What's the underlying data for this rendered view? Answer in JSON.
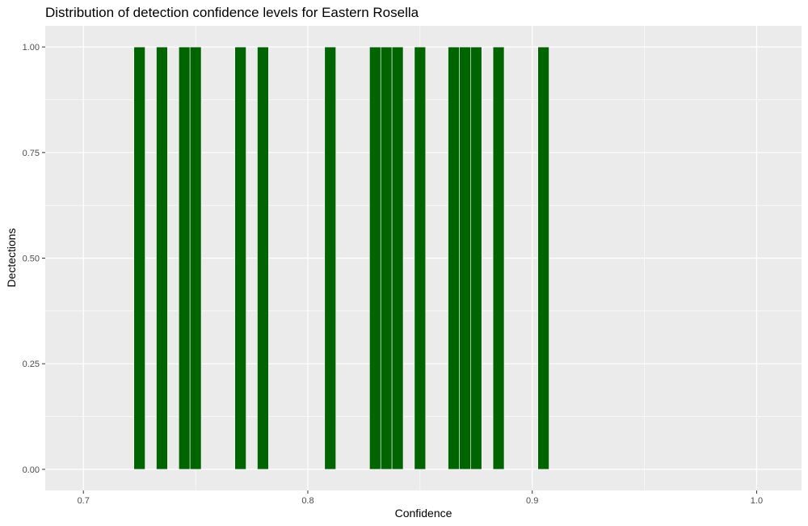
{
  "chart_data": {
    "type": "bar",
    "title": "Distribution of detection confidence levels for Eastern Rosella",
    "xlabel": "Confidence",
    "ylabel": "Dectections",
    "xlim": [
      0.683,
      1.02
    ],
    "ylim": [
      -0.05,
      1.05
    ],
    "x_ticks": [
      0.7,
      0.8,
      0.9,
      1.0
    ],
    "x_tick_labels": [
      "0.7",
      "0.8",
      "0.9",
      "1.0"
    ],
    "y_ticks": [
      0,
      0.25,
      0.5,
      0.75,
      1.0
    ],
    "y_tick_labels": [
      "0.00",
      "0.25",
      "0.50",
      "0.75",
      "1.00"
    ],
    "bin_width": 0.005,
    "x": [
      0.725,
      0.735,
      0.745,
      0.75,
      0.77,
      0.78,
      0.81,
      0.83,
      0.835,
      0.84,
      0.85,
      0.865,
      0.87,
      0.875,
      0.885,
      0.905
    ],
    "values": [
      1,
      1,
      1,
      1,
      1,
      1,
      1,
      1,
      1,
      1,
      1,
      1,
      1,
      1,
      1,
      1
    ],
    "bar_color": "#006400",
    "panel_background": "#ebebeb",
    "grid": true
  }
}
